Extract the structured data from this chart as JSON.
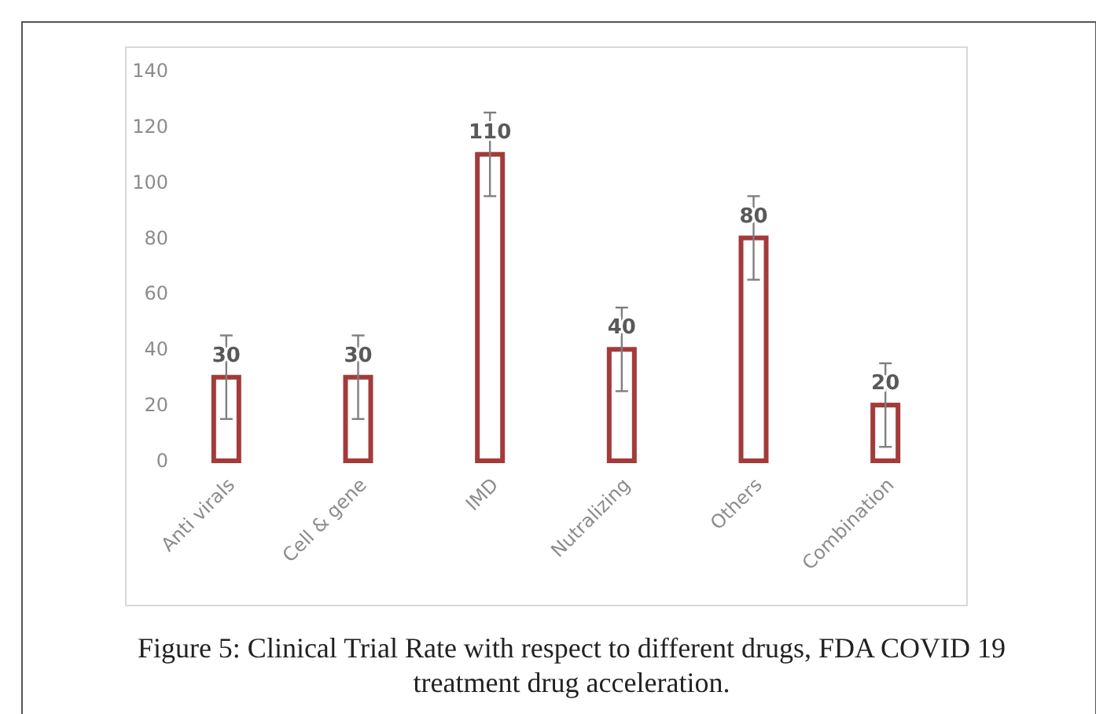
{
  "chart_data": {
    "type": "bar",
    "title": "Figure 5: Clinical Trial Rate with respect to different drugs, FDA COVID 19 treatment drug acceleration.",
    "categories": [
      "Anti virals",
      "Cell & gene",
      "IMD",
      "Nutralizing",
      "Others",
      "Combination"
    ],
    "values": [
      30,
      30,
      110,
      40,
      80,
      20
    ],
    "errors": [
      15,
      15,
      15,
      15,
      15,
      15
    ],
    "color": "#a33b3b",
    "ylim": [
      0,
      140
    ],
    "yticks": [
      0,
      20,
      40,
      60,
      80,
      100,
      120,
      140
    ],
    "data_labels": true,
    "grid": false
  }
}
